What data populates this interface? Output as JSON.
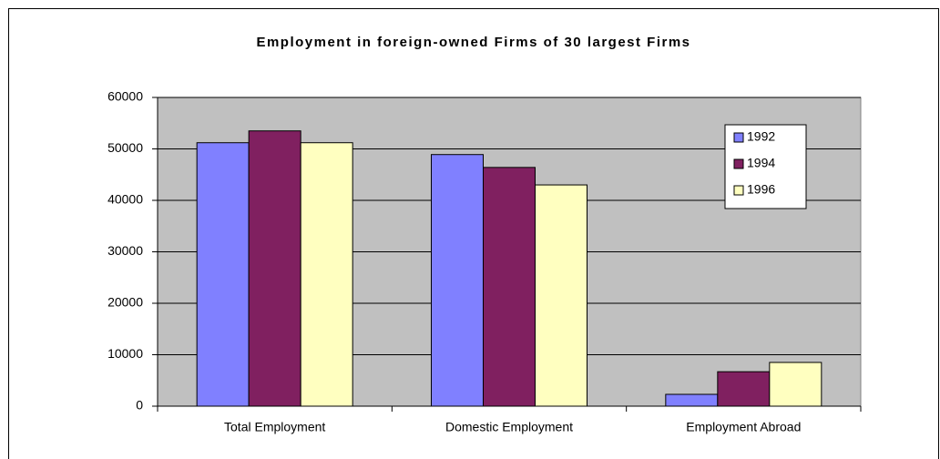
{
  "chart_data": {
    "type": "bar",
    "title": "Employment in foreign-owned Firms of 30 largest Firms",
    "categories": [
      "Total Employment",
      "Domestic Employment",
      "Employment Abroad"
    ],
    "series": [
      {
        "name": "1992",
        "color": "#8080ff",
        "values": [
          51200,
          48900,
          2300
        ]
      },
      {
        "name": "1994",
        "color": "#802060",
        "values": [
          53500,
          46400,
          6700
        ]
      },
      {
        "name": "1996",
        "color": "#ffffc0",
        "values": [
          51200,
          43000,
          8500
        ]
      }
    ],
    "ylim": [
      0,
      60000
    ],
    "yticks": [
      0,
      10000,
      20000,
      30000,
      40000,
      50000,
      60000
    ],
    "grid": true,
    "legend": "right"
  }
}
